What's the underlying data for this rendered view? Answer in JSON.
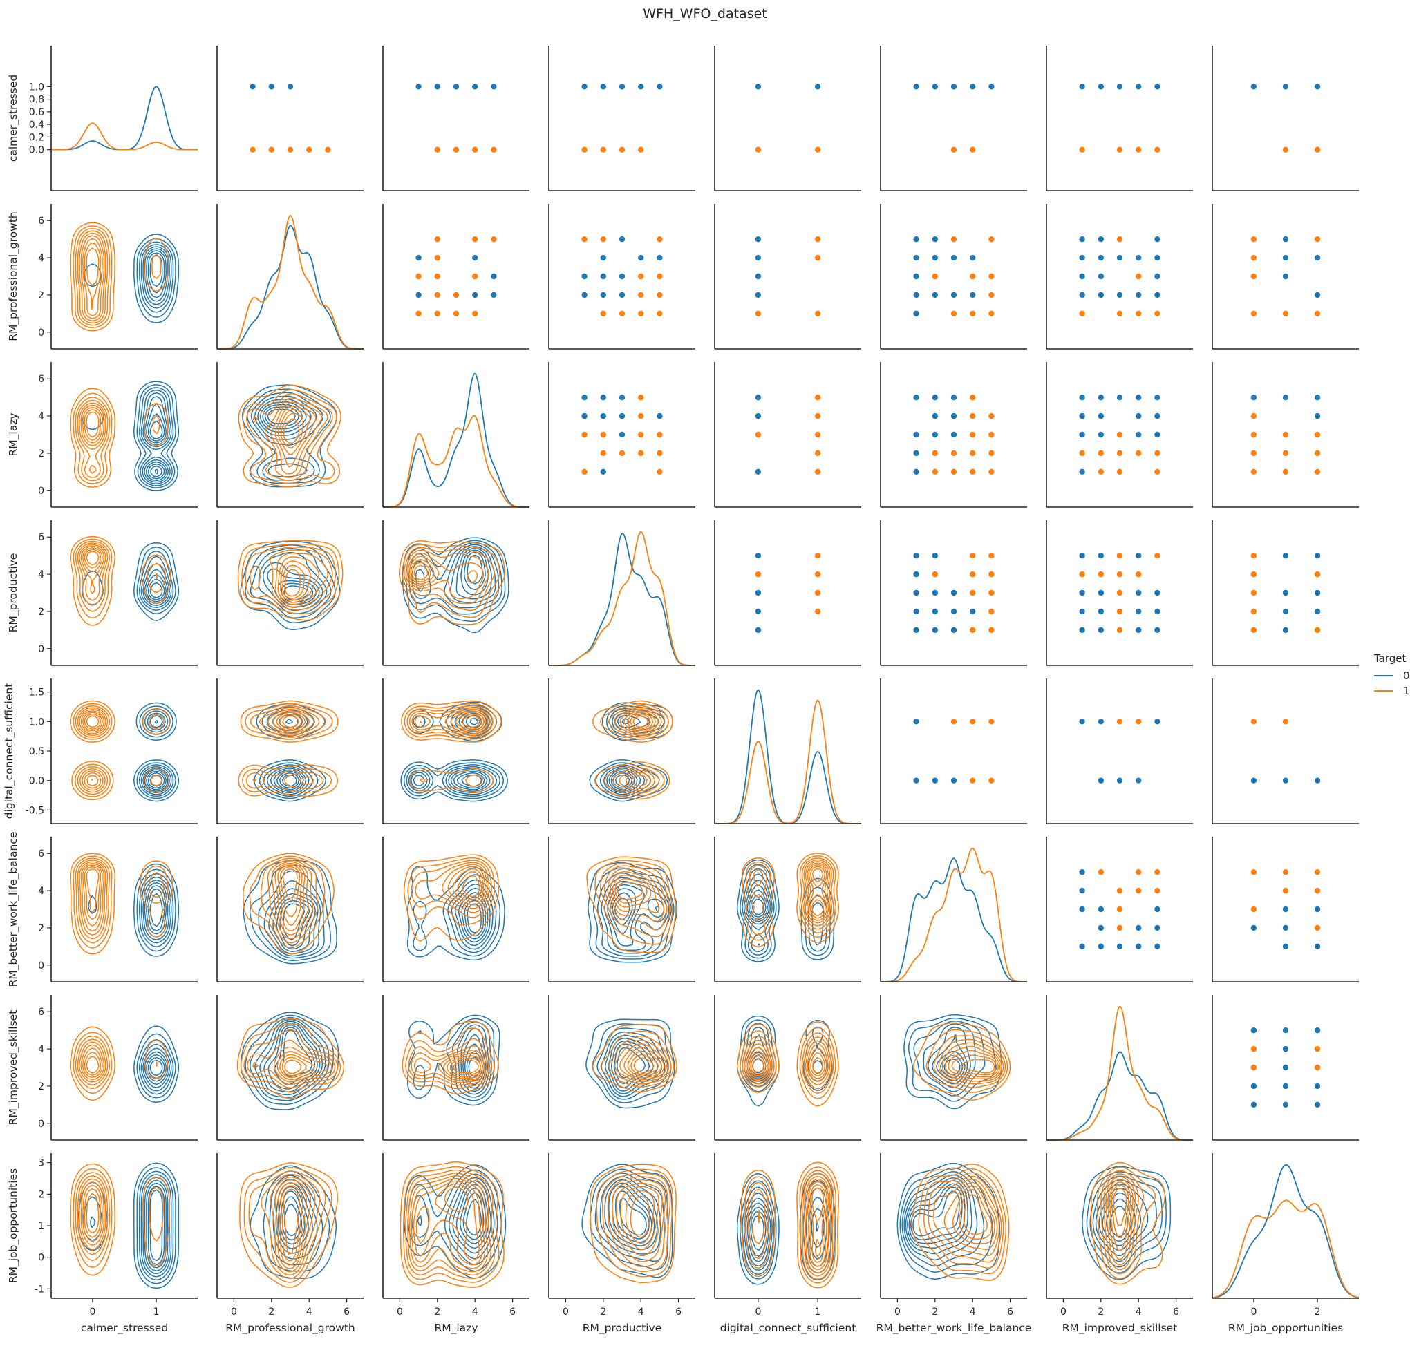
{
  "chart_data": {
    "type": "pairplot",
    "title": "WFH_WFO_dataset",
    "hue": "Target",
    "variables": [
      "calmer_stressed",
      "RM_professional_growth",
      "RM_lazy",
      "RM_productive",
      "digital_connect_sufficient",
      "RM_better_work_life_balance",
      "RM_improved_skillset",
      "RM_job_opportunities"
    ],
    "ranges": [
      [
        -0.65,
        1.65
      ],
      [
        -0.9,
        6.9
      ],
      [
        -0.9,
        6.9
      ],
      [
        -0.9,
        6.9
      ],
      [
        -0.73,
        1.73
      ],
      [
        -0.9,
        6.9
      ],
      [
        -0.9,
        6.9
      ],
      [
        -1.3,
        3.3
      ]
    ],
    "ticks": [
      [
        0,
        1
      ],
      [
        0,
        2,
        4,
        6
      ],
      [
        0,
        2,
        4,
        6
      ],
      [
        0,
        2,
        4,
        6
      ],
      [
        0,
        1
      ],
      [
        0,
        2,
        4,
        6
      ],
      [
        0,
        2,
        4,
        6
      ],
      [
        0,
        2
      ]
    ],
    "yticks": [
      [
        "0.0",
        "0.2",
        "0.4",
        "0.6",
        "0.8",
        "1.0"
      ],
      [
        "0",
        "2",
        "4",
        "6"
      ],
      [
        "0",
        "2",
        "4",
        "6"
      ],
      [
        "0",
        "2",
        "4",
        "6"
      ],
      [
        "-0.5",
        "0.0",
        "0.5",
        "1.0",
        "1.5"
      ],
      [
        "0",
        "2",
        "4",
        "6"
      ],
      [
        "0",
        "2",
        "4",
        "6"
      ],
      [
        "-1",
        "0",
        "1",
        "2",
        "3"
      ]
    ],
    "ytick_values": [
      [
        0,
        0.2,
        0.4,
        0.6,
        0.8,
        1.0
      ],
      [
        0,
        2,
        4,
        6
      ],
      [
        0,
        2,
        4,
        6
      ],
      [
        0,
        2,
        4,
        6
      ],
      [
        -0.5,
        0,
        0.5,
        1,
        1.5
      ],
      [
        0,
        2,
        4,
        6
      ],
      [
        0,
        2,
        4,
        6
      ],
      [
        -1,
        0,
        1,
        2,
        3
      ]
    ],
    "xticks": [
      [
        "0",
        "1"
      ],
      [
        "0",
        "2",
        "4",
        "6"
      ],
      [
        "0",
        "2",
        "4",
        "6"
      ],
      [
        "0",
        "2",
        "4",
        "6"
      ],
      [
        "0",
        "1"
      ],
      [
        "0",
        "2",
        "4",
        "6"
      ],
      [
        "0",
        "2",
        "4",
        "6"
      ],
      [
        "0",
        "2"
      ]
    ],
    "levels": [
      [
        0,
        1
      ],
      [
        1,
        2,
        3,
        4,
        5
      ],
      [
        1,
        2,
        3,
        4,
        5
      ],
      [
        1,
        2,
        3,
        4,
        5
      ],
      [
        0,
        1
      ],
      [
        1,
        2,
        3,
        4,
        5
      ],
      [
        1,
        2,
        3,
        4,
        5
      ],
      [
        0,
        1,
        2
      ]
    ],
    "series": [
      {
        "name": "0",
        "color": "#1f77b4",
        "dist": [
          [
            0.12,
            0.88
          ],
          [
            0.07,
            0.2,
            0.36,
            0.27,
            0.1
          ],
          [
            0.2,
            0.05,
            0.18,
            0.45,
            0.12
          ],
          [
            0.03,
            0.12,
            0.4,
            0.25,
            0.2
          ],
          [
            0.65,
            0.35
          ],
          [
            0.2,
            0.22,
            0.28,
            0.2,
            0.1
          ],
          [
            0.05,
            0.18,
            0.35,
            0.24,
            0.18
          ],
          [
            0.2,
            0.5,
            0.3
          ]
        ]
      },
      {
        "name": "1",
        "color": "#ff7f0e",
        "dist": [
          [
            0.78,
            0.22
          ],
          [
            0.15,
            0.15,
            0.4,
            0.18,
            0.12
          ],
          [
            0.25,
            0.12,
            0.25,
            0.3,
            0.08
          ],
          [
            0.03,
            0.1,
            0.22,
            0.4,
            0.25
          ],
          [
            0.4,
            0.6
          ],
          [
            0.05,
            0.15,
            0.25,
            0.3,
            0.25
          ],
          [
            0.03,
            0.1,
            0.55,
            0.2,
            0.12
          ],
          [
            0.3,
            0.35,
            0.35
          ]
        ]
      }
    ],
    "kde_peaks": [
      {
        "var": "calmer_stressed",
        "series": "0",
        "peak": 1.0
      },
      {
        "var": "calmer_stressed",
        "series": "1",
        "peak": 0.42
      }
    ],
    "legend": {
      "title": "Target",
      "entries": [
        "0",
        "1"
      ],
      "placement": "right"
    }
  }
}
